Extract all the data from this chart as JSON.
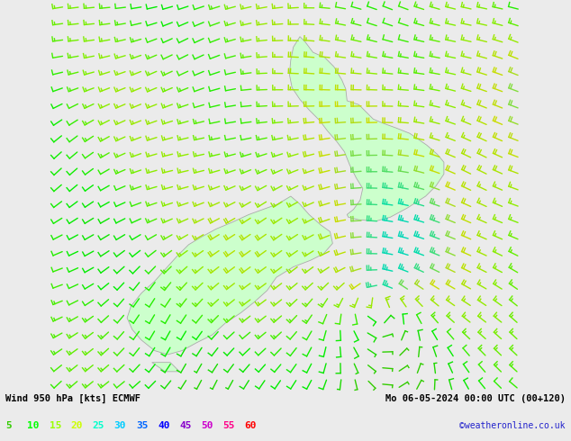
{
  "title_left": "Wind 950 hPa [kts] ECMWF",
  "title_right": "Mo 06-05-2024 00:00 UTC (00+120)",
  "credit": "©weatheronline.co.uk",
  "legend_values": [
    5,
    10,
    15,
    20,
    25,
    30,
    35,
    40,
    45,
    50,
    55,
    60
  ],
  "legend_colors": [
    "#33cc00",
    "#00ff00",
    "#99ff00",
    "#ccff00",
    "#00ffcc",
    "#00ccff",
    "#0066ff",
    "#0000ff",
    "#8800cc",
    "#cc00cc",
    "#ff0088",
    "#ff0000"
  ],
  "background_color": "#ebebeb",
  "land_color_light": "#ccffcc",
  "land_color_dark": "#90ee90",
  "land_edge_color": "#aaaaaa",
  "fig_width": 6.34,
  "fig_height": 4.9,
  "dpi": 100,
  "colorscale": [
    {
      "speed": 5,
      "color": "#33cc00"
    },
    {
      "speed": 10,
      "color": "#00ee00"
    },
    {
      "speed": 15,
      "color": "#88ee00"
    },
    {
      "speed": 20,
      "color": "#ccdd00"
    },
    {
      "speed": 25,
      "color": "#00ddaa"
    },
    {
      "speed": 30,
      "color": "#00bbee"
    },
    {
      "speed": 35,
      "color": "#0055ff"
    },
    {
      "speed": 40,
      "color": "#0000ee"
    },
    {
      "speed": 45,
      "color": "#8800bb"
    },
    {
      "speed": 50,
      "color": "#bb00bb"
    },
    {
      "speed": 55,
      "color": "#ee0077"
    },
    {
      "speed": 60,
      "color": "#ff0000"
    }
  ]
}
